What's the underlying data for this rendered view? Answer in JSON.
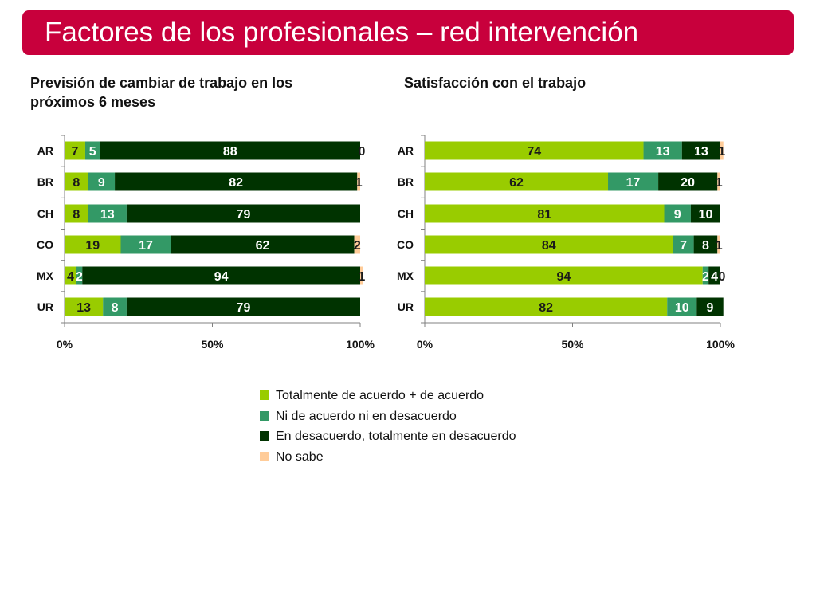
{
  "title": "Factores de los profesionales – red intervención",
  "colors": {
    "title_bg": "#c8003c",
    "Totalmente de acuerdo + de acuerdo": "#99cc00",
    "Ni de acuerdo ni en desacuerdo": "#339966",
    "En desacuerdo, totalmente en desacuerdo": "#003300",
    "No sabe": "#ffcc99"
  },
  "legend": [
    {
      "label": "Totalmente de acuerdo + de acuerdo",
      "color": "#99cc00"
    },
    {
      "label": "Ni de acuerdo ni en desacuerdo",
      "color": "#339966"
    },
    {
      "label": "En desacuerdo, totalmente en desacuerdo",
      "color": "#003300"
    },
    {
      "label": "No sabe",
      "color": "#ffcc99"
    }
  ],
  "chart_data": [
    {
      "type": "bar",
      "orientation": "horizontal-stacked",
      "title": "Previsión de cambiar de trabajo en los próximos 6 meses",
      "categories": [
        "AR",
        "BR",
        "CH",
        "CO",
        "MX",
        "UR"
      ],
      "x_ticks": [
        "0%",
        "50%",
        "100%"
      ],
      "xlim": [
        0,
        100
      ],
      "series": [
        {
          "name": "Totalmente de acuerdo + de acuerdo",
          "values": [
            7,
            8,
            8,
            19,
            4,
            13
          ]
        },
        {
          "name": "Ni de acuerdo ni en desacuerdo",
          "values": [
            5,
            9,
            13,
            17,
            2,
            8
          ]
        },
        {
          "name": "En desacuerdo, totalmente en desacuerdo",
          "values": [
            88,
            82,
            79,
            62,
            94,
            79
          ]
        },
        {
          "name": "No sabe",
          "values": [
            0,
            1,
            null,
            2,
            1,
            null
          ]
        }
      ]
    },
    {
      "type": "bar",
      "orientation": "horizontal-stacked",
      "title": "Satisfacción con el trabajo",
      "categories": [
        "AR",
        "BR",
        "CH",
        "CO",
        "MX",
        "UR"
      ],
      "x_ticks": [
        "0%",
        "50%",
        "100%"
      ],
      "xlim": [
        0,
        100
      ],
      "series": [
        {
          "name": "Totalmente de acuerdo + de acuerdo",
          "values": [
            74,
            62,
            81,
            84,
            94,
            82
          ]
        },
        {
          "name": "Ni de acuerdo ni en desacuerdo",
          "values": [
            13,
            17,
            9,
            7,
            2,
            10
          ]
        },
        {
          "name": "En desacuerdo, totalmente en desacuerdo",
          "values": [
            13,
            20,
            10,
            8,
            4,
            9
          ]
        },
        {
          "name": "No sabe",
          "values": [
            1,
            1,
            null,
            1,
            0,
            null
          ]
        }
      ]
    }
  ]
}
